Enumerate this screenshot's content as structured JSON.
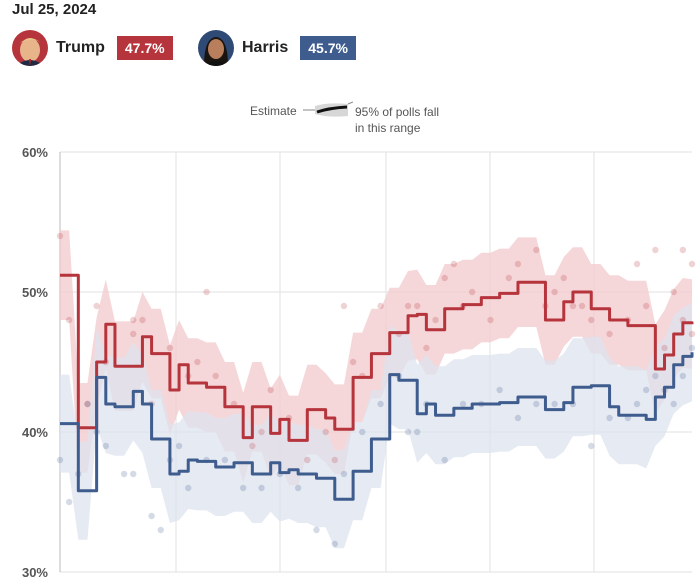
{
  "header": {
    "date": "Jul 25, 2024"
  },
  "candidates": [
    {
      "name": "Trump",
      "value_label": "47.7%",
      "color": "#b6343c"
    },
    {
      "name": "Harris",
      "value_label": "45.7%",
      "color": "#3e5c8e"
    }
  ],
  "legend": {
    "estimate_label": "Estimate",
    "range_line1": "95% of polls fall",
    "range_line2": "in this range"
  },
  "chart_data": {
    "type": "line",
    "title": "",
    "xlabel": "",
    "ylabel": "",
    "ylim": [
      30,
      60
    ],
    "y_ticks": [
      {
        "value": 60,
        "label": "60%"
      },
      {
        "value": 50,
        "label": "50%"
      },
      {
        "value": 40,
        "label": "40%"
      },
      {
        "value": 30,
        "label": "30%"
      }
    ],
    "grid": true,
    "series": [
      {
        "name": "Trump",
        "color": "#b6343c",
        "band_color": "#f2c9cc",
        "values": [
          51.2,
          51.2,
          40.3,
          40.3,
          45.0,
          47.7,
          44.7,
          44.7,
          44.7,
          46.8,
          45.6,
          45.6,
          43.0,
          44.8,
          43.5,
          43.5,
          43.2,
          43.2,
          41.8,
          41.8,
          39.6,
          41.8,
          41.8,
          39.9,
          40.9,
          39.4,
          39.4,
          41.6,
          41.6,
          41.0,
          40.2,
          40.2,
          43.9,
          43.9,
          45.6,
          45.6,
          47.1,
          47.1,
          48.3,
          48.4,
          47.3,
          47.3,
          48.8,
          48.8,
          49.1,
          49.1,
          49.6,
          49.6,
          49.9,
          49.9,
          50.7,
          50.7,
          50.7,
          48.0,
          48.0,
          49.3,
          50.0,
          50.0,
          48.8,
          48.8,
          48.0,
          48.0,
          47.6,
          47.6,
          47.6,
          44.5,
          45.5,
          47.0,
          47.8,
          47.7
        ],
        "band_half_width": 3.2
      },
      {
        "name": "Harris",
        "color": "#3e5c8e",
        "band_color": "#dde3ee",
        "values": [
          40.6,
          40.6,
          35.8,
          35.8,
          43.9,
          42.0,
          41.8,
          41.8,
          42.9,
          42.0,
          39.5,
          39.5,
          37.0,
          37.2,
          38.0,
          37.9,
          37.9,
          37.5,
          37.5,
          37.8,
          37.8,
          37.0,
          37.0,
          37.8,
          37.1,
          37.3,
          37.0,
          37.0,
          36.7,
          36.7,
          35.2,
          35.2,
          37.2,
          37.2,
          39.5,
          39.5,
          44.1,
          43.7,
          43.7,
          41.3,
          42.0,
          41.2,
          41.2,
          41.7,
          41.7,
          42.0,
          42.0,
          42.0,
          42.1,
          42.1,
          42.5,
          42.5,
          42.5,
          41.6,
          41.6,
          42.1,
          43.2,
          43.2,
          43.3,
          43.3,
          41.8,
          41.2,
          41.2,
          41.2,
          40.9,
          42.5,
          43.2,
          44.8,
          45.4,
          45.7
        ],
        "band_half_width": 3.5
      }
    ],
    "poll_dots": {
      "Trump": [
        [
          0,
          54
        ],
        [
          1,
          48
        ],
        [
          3,
          42
        ],
        [
          4,
          49
        ],
        [
          5,
          45
        ],
        [
          8,
          47
        ],
        [
          8,
          48
        ],
        [
          9,
          48
        ],
        [
          10,
          42
        ],
        [
          12,
          46
        ],
        [
          14,
          44
        ],
        [
          15,
          45
        ],
        [
          16,
          50
        ],
        [
          17,
          44
        ],
        [
          19,
          42
        ],
        [
          21,
          39
        ],
        [
          22,
          40
        ],
        [
          23,
          43
        ],
        [
          25,
          41
        ],
        [
          27,
          38
        ],
        [
          29,
          40
        ],
        [
          30,
          38
        ],
        [
          31,
          49
        ],
        [
          32,
          45
        ],
        [
          33,
          44
        ],
        [
          35,
          49
        ],
        [
          37,
          47
        ],
        [
          38,
          49
        ],
        [
          39,
          49
        ],
        [
          40,
          46
        ],
        [
          41,
          48
        ],
        [
          42,
          51
        ],
        [
          43,
          52
        ],
        [
          44,
          49
        ],
        [
          45,
          50
        ],
        [
          47,
          48
        ],
        [
          49,
          51
        ],
        [
          50,
          52
        ],
        [
          52,
          53
        ],
        [
          53,
          49
        ],
        [
          54,
          50
        ],
        [
          55,
          51
        ],
        [
          56,
          49
        ],
        [
          57,
          49
        ],
        [
          58,
          48
        ],
        [
          60,
          47
        ],
        [
          62,
          48
        ],
        [
          63,
          52
        ],
        [
          64,
          49
        ],
        [
          65,
          53
        ],
        [
          66,
          46
        ],
        [
          67,
          50
        ],
        [
          68,
          48
        ],
        [
          69,
          52
        ],
        [
          69,
          47
        ],
        [
          68,
          53
        ]
      ],
      "Harris": [
        [
          0,
          38
        ],
        [
          1,
          35
        ],
        [
          2,
          37
        ],
        [
          3,
          42
        ],
        [
          4,
          40
        ],
        [
          5,
          39
        ],
        [
          7,
          37
        ],
        [
          8,
          37
        ],
        [
          10,
          34
        ],
        [
          11,
          33
        ],
        [
          12,
          38
        ],
        [
          13,
          39
        ],
        [
          14,
          36
        ],
        [
          16,
          38
        ],
        [
          18,
          38
        ],
        [
          20,
          36
        ],
        [
          22,
          36
        ],
        [
          24,
          37
        ],
        [
          26,
          36
        ],
        [
          28,
          33
        ],
        [
          30,
          32
        ],
        [
          31,
          37
        ],
        [
          33,
          40
        ],
        [
          35,
          42
        ],
        [
          37,
          44
        ],
        [
          38,
          40
        ],
        [
          39,
          40
        ],
        [
          40,
          42
        ],
        [
          42,
          38
        ],
        [
          44,
          42
        ],
        [
          46,
          42
        ],
        [
          48,
          43
        ],
        [
          50,
          41
        ],
        [
          52,
          42
        ],
        [
          54,
          42
        ],
        [
          56,
          42
        ],
        [
          58,
          39
        ],
        [
          60,
          41
        ],
        [
          62,
          41
        ],
        [
          63,
          42
        ],
        [
          64,
          43
        ],
        [
          65,
          44
        ],
        [
          66,
          43
        ],
        [
          67,
          42
        ],
        [
          68,
          44
        ],
        [
          69,
          46
        ]
      ]
    }
  }
}
